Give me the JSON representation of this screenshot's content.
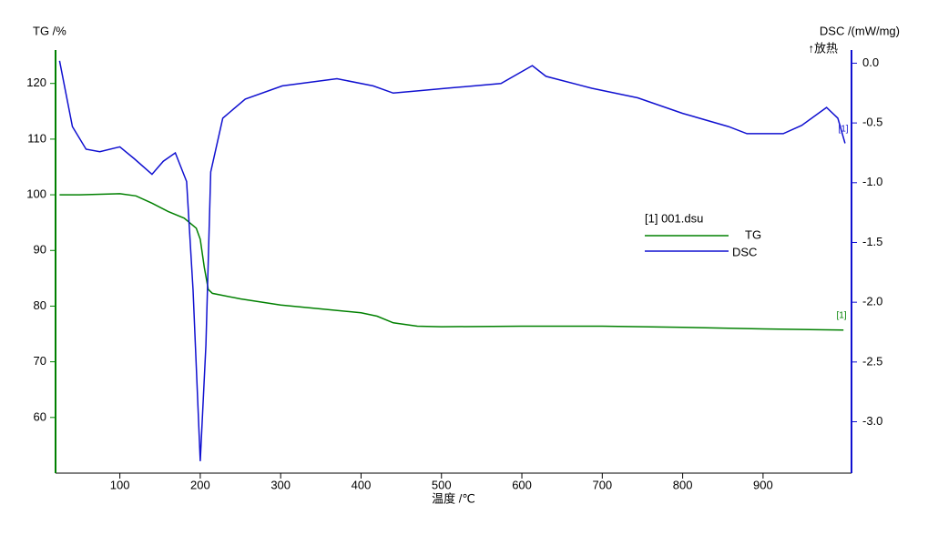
{
  "chart_data": {
    "type": "line",
    "x_label": "温度 /℃",
    "y_label": "TG /%",
    "y2_label": "DSC /(mW/mg)",
    "y2_note": "↑放热",
    "legend_title": "[1] 001.dsu",
    "end_labels": [
      "[1]",
      "[1]"
    ],
    "xlim": [
      20,
      1010
    ],
    "xticks": [
      100,
      200,
      300,
      400,
      500,
      600,
      700,
      800,
      900
    ],
    "ylim": [
      50,
      126
    ],
    "yticks": [
      60,
      70,
      80,
      90,
      100,
      110,
      120
    ],
    "y2lim": [
      -3.43,
      0.11
    ],
    "y2ticks": [
      {
        "value": 0,
        "label": "0.0"
      },
      -0.5,
      {
        "value": -1,
        "label": "-1.0"
      },
      -1.5,
      {
        "value": -2,
        "label": "-2.0"
      },
      -2.5,
      {
        "value": -3,
        "label": "-3.0"
      }
    ],
    "legend": "center-right",
    "series": [
      {
        "name": "TG",
        "color": "#008000",
        "axis": "y",
        "x": [
          25,
          50,
          100,
          120,
          140,
          160,
          180,
          195,
          200,
          205,
          210,
          215,
          250,
          300,
          350,
          400,
          420,
          440,
          470,
          500,
          600,
          700,
          800,
          900,
          1000
        ],
        "values": [
          100,
          100,
          100.2,
          99.8,
          98.5,
          97,
          95.8,
          94,
          92,
          87,
          83,
          82.3,
          81.3,
          80.2,
          79.5,
          78.8,
          78.2,
          77,
          76.4,
          76.3,
          76.4,
          76.4,
          76.2,
          75.9,
          75.7
        ]
      },
      {
        "name": "DSC",
        "color": "#1010d0",
        "axis": "y2",
        "x": [
          25,
          41,
          58,
          75,
          100,
          118,
          140,
          154,
          169,
          183,
          191,
          200,
          207,
          213,
          228,
          256,
          302,
          370,
          415,
          440,
          472,
          506,
          574,
          613,
          630,
          687,
          744,
          800,
          857,
          880,
          925,
          948,
          979,
          993,
          1002
        ],
        "values": [
          0.02,
          -0.53,
          -0.72,
          -0.74,
          -0.7,
          -0.8,
          -0.93,
          -0.82,
          -0.75,
          -0.99,
          -1.9,
          -3.33,
          -2.36,
          -0.91,
          -0.46,
          -0.3,
          -0.19,
          -0.13,
          -0.19,
          -0.25,
          -0.23,
          -0.21,
          -0.17,
          -0.02,
          -0.11,
          -0.21,
          -0.29,
          -0.42,
          -0.53,
          -0.59,
          -0.59,
          -0.52,
          -0.37,
          -0.46,
          -0.67
        ]
      }
    ]
  }
}
